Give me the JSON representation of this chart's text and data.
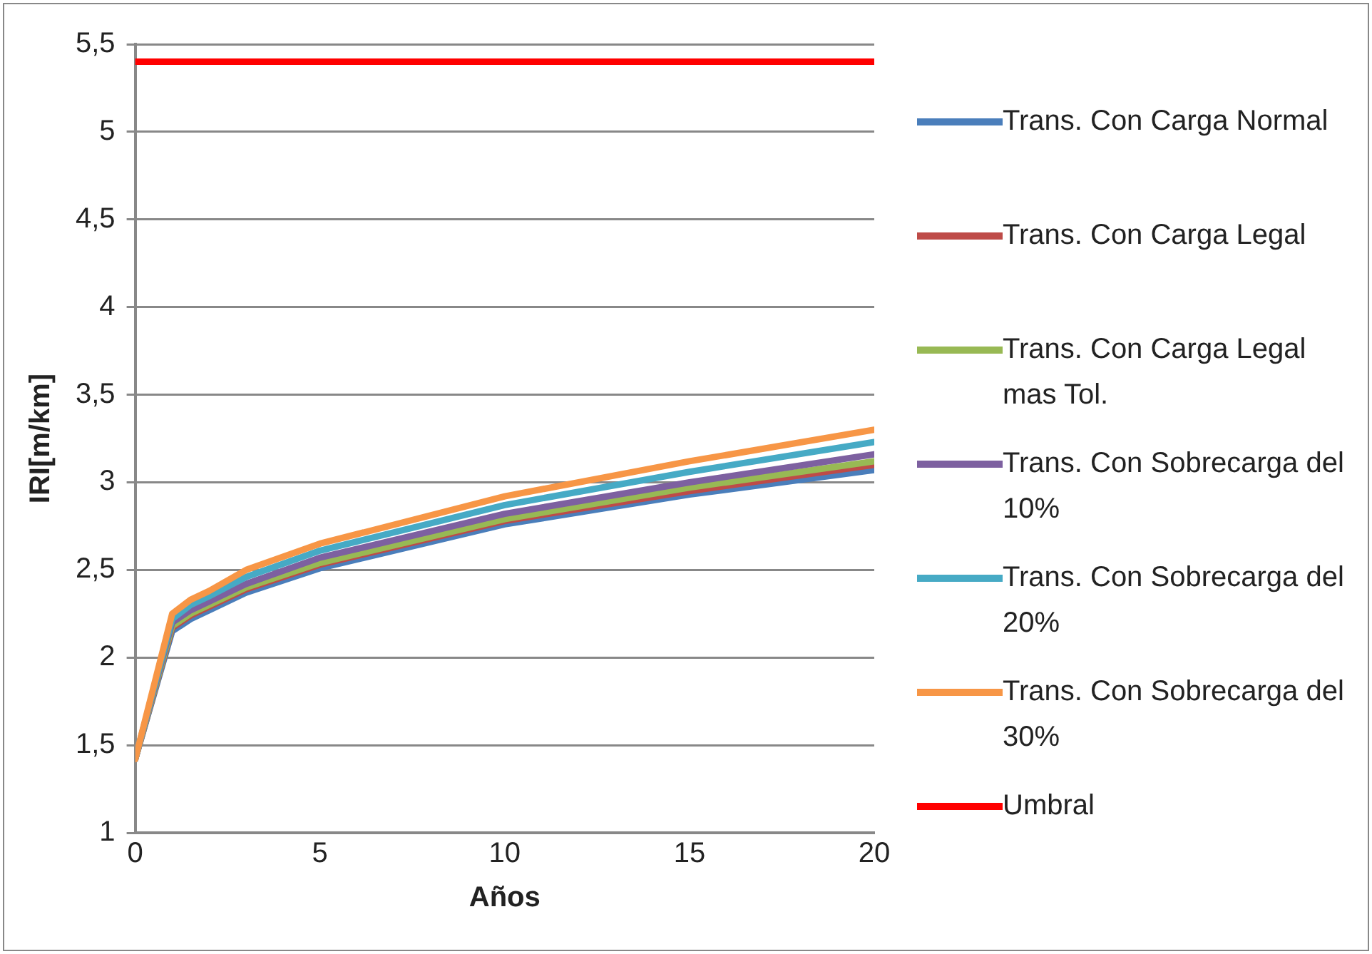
{
  "chart_data": {
    "type": "line",
    "xlabel": "Años",
    "ylabel": "IRI[m/km]",
    "xlim": [
      0,
      20
    ],
    "xticks": [
      0,
      5,
      10,
      15,
      20
    ],
    "ylim": [
      1,
      5.5
    ],
    "yticks": [
      1,
      {
        "value": 1.5,
        "label": "1,5"
      },
      2,
      {
        "value": 2.5,
        "label": "2,5"
      },
      3,
      {
        "value": 3.5,
        "label": "3,5"
      },
      4,
      {
        "value": 4.5,
        "label": "4,5"
      },
      5,
      {
        "value": 5.5,
        "label": "5,5"
      }
    ],
    "grid": "y",
    "legend": "right",
    "marker": "none",
    "line_style": "solid",
    "x": [
      0,
      1,
      1.5,
      2,
      3,
      5,
      10,
      15,
      20
    ],
    "series": [
      {
        "name": "Trans. Con Carga Normal",
        "color": "#4a7ebb",
        "values": [
          1.42,
          2.15,
          2.22,
          2.27,
          2.37,
          2.51,
          2.76,
          2.93,
          3.07
        ]
      },
      {
        "name": "Trans. Con Carga Legal",
        "color": "#be4b48",
        "values": [
          1.42,
          2.17,
          2.24,
          2.29,
          2.39,
          2.53,
          2.78,
          2.95,
          3.1
        ]
      },
      {
        "name": "Trans. Con Carga Legal mas Tol.",
        "color": "#98b954",
        "values": [
          1.42,
          2.18,
          2.25,
          2.3,
          2.4,
          2.54,
          2.79,
          2.97,
          3.12
        ]
      },
      {
        "name": "Trans. Con Sobrecarga del 10%",
        "color": "#7d60a0",
        "values": [
          1.42,
          2.2,
          2.27,
          2.32,
          2.42,
          2.57,
          2.82,
          3.0,
          3.16
        ]
      },
      {
        "name": "Trans. Con Sobrecarga del 20%",
        "color": "#46aac5",
        "values": [
          1.42,
          2.22,
          2.3,
          2.35,
          2.46,
          2.61,
          2.87,
          3.06,
          3.23
        ]
      },
      {
        "name": "Trans. Con Sobrecarga del 30%",
        "color": "#f79646",
        "values": [
          1.42,
          2.25,
          2.33,
          2.38,
          2.5,
          2.65,
          2.92,
          3.12,
          3.3
        ]
      },
      {
        "name": "Umbral",
        "color": "#ff0000",
        "x": [
          0,
          20
        ],
        "values": [
          5.4,
          5.4
        ]
      }
    ]
  }
}
